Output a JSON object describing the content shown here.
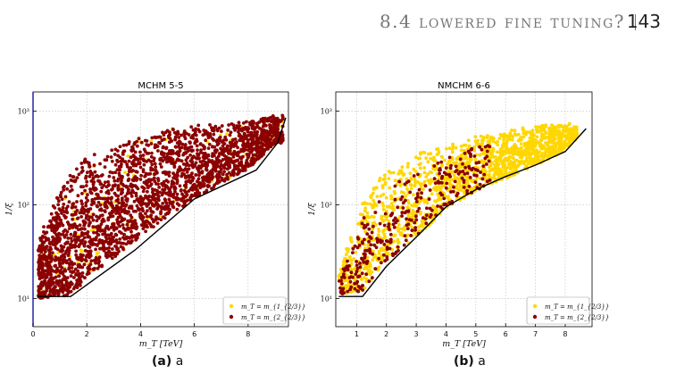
{
  "header": {
    "section_title": "8.4 lowered fine tuning?",
    "page_number": "143"
  },
  "colors": {
    "series_yellow": "#ffd700",
    "series_dark_red": "#8b0000",
    "bound_line": "#000000",
    "grid": "#bbbbbb",
    "left_axis_accent": "#3333aa"
  },
  "captions": [
    {
      "label": "(a)",
      "text": "a"
    },
    {
      "label": "(b)",
      "text": "a"
    }
  ],
  "chart_data": [
    {
      "type": "scatter",
      "title": "MCHM 5-5",
      "xlabel": "m_T [TeV]",
      "ylabel": "1/ξ",
      "xlim": [
        0,
        9.5
      ],
      "ylim": [
        5,
        1600
      ],
      "yscale": "log",
      "x_ticks": [
        0,
        2,
        4,
        6,
        8
      ],
      "x_tick_labels": [
        "0",
        "2",
        "4",
        "6",
        "8"
      ],
      "y_ticks": [
        10,
        100,
        1000
      ],
      "y_tick_labels": [
        "10¹",
        "10²",
        "10³"
      ],
      "grid": true,
      "legend_position": "lower-right",
      "series": [
        {
          "name": "m_T = m_{1_{2/3}}",
          "color": "#ffd700",
          "marker": "dot",
          "draw_order": "behind"
        },
        {
          "name": "m_T = m_{2_{2/3}}",
          "color": "#8b0000",
          "marker": "dot",
          "draw_order": "front"
        }
      ],
      "cloud": {
        "x_range": [
          0.2,
          9.3
        ],
        "upper_envelope": [
          [
            0.2,
            40
          ],
          [
            0.6,
            90
          ],
          [
            1,
            160
          ],
          [
            1.5,
            250
          ],
          [
            2,
            330
          ],
          [
            3,
            450
          ],
          [
            4,
            560
          ],
          [
            5,
            650
          ],
          [
            6,
            700
          ],
          [
            7,
            750
          ],
          [
            8,
            800
          ],
          [
            9,
            900
          ]
        ],
        "lower_envelope": [
          [
            0.2,
            10
          ],
          [
            1.2,
            10.5
          ],
          [
            1.6,
            12
          ],
          [
            2.2,
            18
          ],
          [
            3,
            27
          ],
          [
            4,
            45
          ],
          [
            5,
            75
          ],
          [
            6,
            115
          ],
          [
            7,
            170
          ],
          [
            8,
            240
          ],
          [
            9,
            450
          ]
        ],
        "density_front": 0.96
      },
      "bound_line": [
        [
          0.15,
          10.5
        ],
        [
          1.4,
          10.5
        ],
        [
          3.8,
          33
        ],
        [
          6,
          115
        ],
        [
          8.3,
          235
        ],
        [
          9.1,
          460
        ],
        [
          9.4,
          850
        ]
      ]
    },
    {
      "type": "scatter",
      "title": "NMCHM 6-6",
      "xlabel": "m_T [TeV]",
      "ylabel": "1/ξ",
      "xlim": [
        0.3,
        8.9
      ],
      "ylim": [
        5,
        1600
      ],
      "yscale": "log",
      "x_ticks": [
        1,
        2,
        3,
        4,
        5,
        6,
        7,
        8
      ],
      "x_tick_labels": [
        "1",
        "2",
        "3",
        "4",
        "5",
        "6",
        "7",
        "8"
      ],
      "y_ticks": [
        10,
        100,
        1000
      ],
      "y_tick_labels": [
        "10¹",
        "10²",
        "10³"
      ],
      "grid": true,
      "legend_position": "lower-right",
      "series": [
        {
          "name": "m_T = m_{1_{2/3}}",
          "color": "#ffd700",
          "marker": "dot",
          "draw_order": "behind"
        },
        {
          "name": "m_T = m_{2_{2/3}}",
          "color": "#8b0000",
          "marker": "dot",
          "draw_order": "front"
        }
      ],
      "cloud": {
        "x_range": [
          0.4,
          8.4
        ],
        "upper_envelope": [
          [
            0.4,
            18
          ],
          [
            1,
            80
          ],
          [
            1.5,
            160
          ],
          [
            2,
            230
          ],
          [
            3,
            350
          ],
          [
            4,
            450
          ],
          [
            5,
            540
          ],
          [
            6,
            620
          ],
          [
            7,
            700
          ],
          [
            8,
            750
          ],
          [
            8.4,
            700
          ]
        ],
        "lower_envelope": [
          [
            0.4,
            11
          ],
          [
            1.2,
            12
          ],
          [
            2,
            25
          ],
          [
            3,
            45
          ],
          [
            4,
            90
          ],
          [
            5,
            140
          ],
          [
            6,
            190
          ],
          [
            7,
            260
          ],
          [
            8,
            380
          ],
          [
            8.4,
            500
          ]
        ],
        "density_front": 0.18,
        "front_x_range": [
          0.4,
          5.5
        ]
      },
      "bound_line": [
        [
          0.4,
          10.5
        ],
        [
          1.2,
          10.5
        ],
        [
          2,
          22
        ],
        [
          3,
          45
        ],
        [
          4,
          95
        ],
        [
          5,
          145
        ],
        [
          6,
          200
        ],
        [
          7,
          265
        ],
        [
          8,
          370
        ],
        [
          8.7,
          650
        ]
      ]
    }
  ]
}
